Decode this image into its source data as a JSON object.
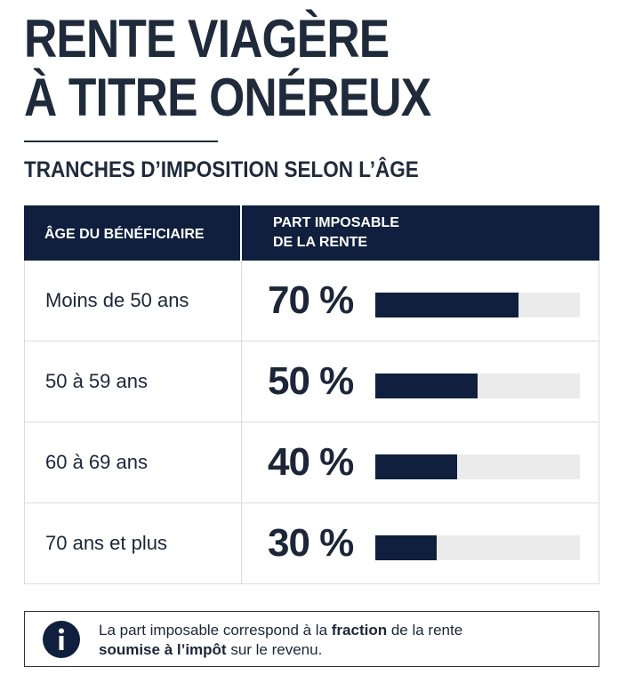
{
  "header": {
    "title_lines": [
      "RENTE VIAGÈRE",
      "À TITRE ONÉREUX"
    ],
    "subtitle": "TRANCHES D’IMPOSITION SELON L’ÂGE"
  },
  "table": {
    "columns": [
      "ÂGE DU BÉNÉFICIAIRE",
      "PART IMPOSABLE\nDE LA RENTE"
    ],
    "rows": [
      "Moins de 50 ans",
      "50 à 59 ans",
      "60 à 69 ans",
      "70 ans et plus"
    ],
    "values": [
      70,
      50,
      40,
      30
    ],
    "value_labels": [
      "70 %",
      "50 %",
      "40 %",
      "30 %"
    ],
    "xlim": [
      0,
      100
    ],
    "bar_color": "#0f1f3d",
    "track_color": "#ebebeb"
  },
  "note": {
    "segments": [
      "La part imposable correspond à la ",
      "fraction",
      " de la rente ",
      "soumise à l’impôt",
      " sur le revenu."
    ]
  }
}
